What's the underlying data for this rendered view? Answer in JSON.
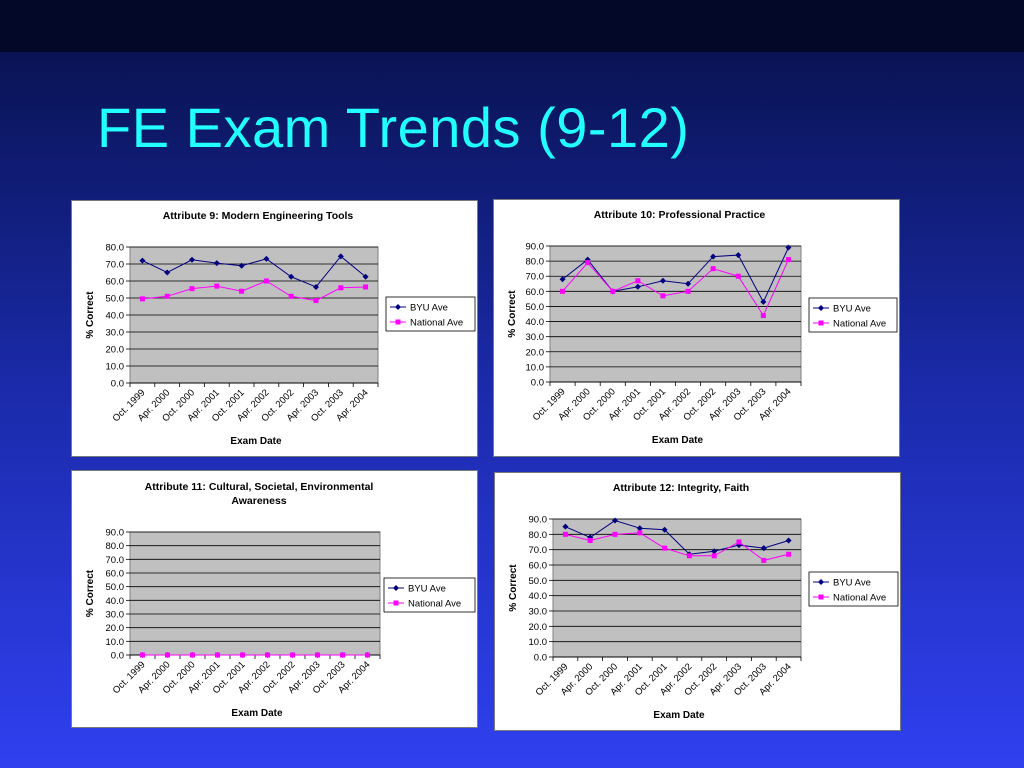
{
  "slide": {
    "title": "FE Exam Trends (9-12)"
  },
  "chart_data": [
    {
      "type": "line",
      "title": "Attribute 9: Modern Engineering Tools",
      "xlabel": "Exam Date",
      "ylabel": "% Correct",
      "ylim": [
        0,
        80
      ],
      "yticks": [
        "0.0",
        "10.0",
        "20.0",
        "30.0",
        "40.0",
        "50.0",
        "60.0",
        "70.0",
        "80.0"
      ],
      "categories": [
        "Oct. 1999",
        "Apr. 2000",
        "Oct. 2000",
        "Apr. 2001",
        "Oct. 2001",
        "Apr. 2002",
        "Oct. 2002",
        "Apr. 2003",
        "Oct. 2003",
        "Apr. 2004"
      ],
      "series": [
        {
          "name": "BYU Ave",
          "color": "#000080",
          "marker": "diamond",
          "values": [
            72,
            65,
            72.5,
            70.5,
            69,
            73,
            62.5,
            56.5,
            74.5,
            62.5
          ]
        },
        {
          "name": "National Ave",
          "color": "#ff00ff",
          "marker": "square",
          "values": [
            49.5,
            51,
            55.5,
            57,
            54,
            60,
            51,
            48.5,
            56,
            56.5
          ]
        }
      ],
      "grid": true,
      "legend": "right"
    },
    {
      "type": "line",
      "title": "Attribute 10: Professional Practice",
      "xlabel": "Exam Date",
      "ylabel": "% Correct",
      "ylim": [
        0,
        90
      ],
      "yticks": [
        "0.0",
        "10.0",
        "20.0",
        "30.0",
        "40.0",
        "50.0",
        "60.0",
        "70.0",
        "80.0",
        "90.0"
      ],
      "categories": [
        "Oct. 1999",
        "Apr. 2000",
        "Oct. 2000",
        "Apr. 2001",
        "Oct. 2001",
        "Apr. 2002",
        "Oct. 2002",
        "Apr. 2003",
        "Oct. 2003",
        "Apr. 2004"
      ],
      "series": [
        {
          "name": "BYU Ave",
          "color": "#000080",
          "marker": "diamond",
          "values": [
            68,
            81,
            60,
            63,
            67,
            65,
            83,
            84,
            53,
            89
          ]
        },
        {
          "name": "National Ave",
          "color": "#ff00ff",
          "marker": "square",
          "values": [
            60,
            79,
            60,
            67,
            57,
            60,
            75,
            70,
            44,
            81
          ]
        }
      ],
      "grid": true,
      "legend": "right"
    },
    {
      "type": "line",
      "title": "Attribute 11: Cultural, Societal, Environmental Awareness",
      "title_lines": [
        "Attribute 11: Cultural, Societal, Environmental",
        "Awareness"
      ],
      "xlabel": "Exam Date",
      "ylabel": "% Correct",
      "ylim": [
        0,
        90
      ],
      "yticks": [
        "0.0",
        "10.0",
        "20.0",
        "30.0",
        "40.0",
        "50.0",
        "60.0",
        "70.0",
        "80.0",
        "90.0"
      ],
      "categories": [
        "Oct. 1999",
        "Apr. 2000",
        "Oct. 2000",
        "Apr. 2001",
        "Oct. 2001",
        "Apr. 2002",
        "Oct. 2002",
        "Apr. 2003",
        "Oct. 2003",
        "Apr. 2004"
      ],
      "series": [
        {
          "name": "BYU Ave",
          "color": "#000080",
          "marker": "diamond",
          "values": [
            0,
            0,
            0,
            0,
            0,
            0,
            0,
            0,
            0,
            0
          ]
        },
        {
          "name": "National Ave",
          "color": "#ff00ff",
          "marker": "square",
          "values": [
            0,
            0,
            0,
            0,
            0,
            0,
            0,
            0,
            0,
            0
          ]
        }
      ],
      "grid": true,
      "legend": "right"
    },
    {
      "type": "line",
      "title": "Attribute 12: Integrity, Faith",
      "xlabel": "Exam Date",
      "ylabel": "% Correct",
      "ylim": [
        0,
        90
      ],
      "yticks": [
        "0.0",
        "10.0",
        "20.0",
        "30.0",
        "40.0",
        "50.0",
        "60.0",
        "70.0",
        "80.0",
        "90.0"
      ],
      "categories": [
        "Oct. 1999",
        "Apr. 2000",
        "Oct. 2000",
        "Apr. 2001",
        "Oct. 2001",
        "Apr. 2002",
        "Oct. 2002",
        "Apr. 2003",
        "Oct. 2003",
        "Apr. 2004"
      ],
      "series": [
        {
          "name": "BYU Ave",
          "color": "#000080",
          "marker": "diamond",
          "values": [
            85,
            78,
            89,
            84,
            83,
            67,
            69,
            73,
            71,
            76
          ]
        },
        {
          "name": "National Ave",
          "color": "#ff00ff",
          "marker": "square",
          "values": [
            80,
            76,
            80,
            81,
            71,
            66,
            66,
            75,
            63,
            67
          ]
        }
      ],
      "grid": true,
      "legend": "right"
    }
  ]
}
